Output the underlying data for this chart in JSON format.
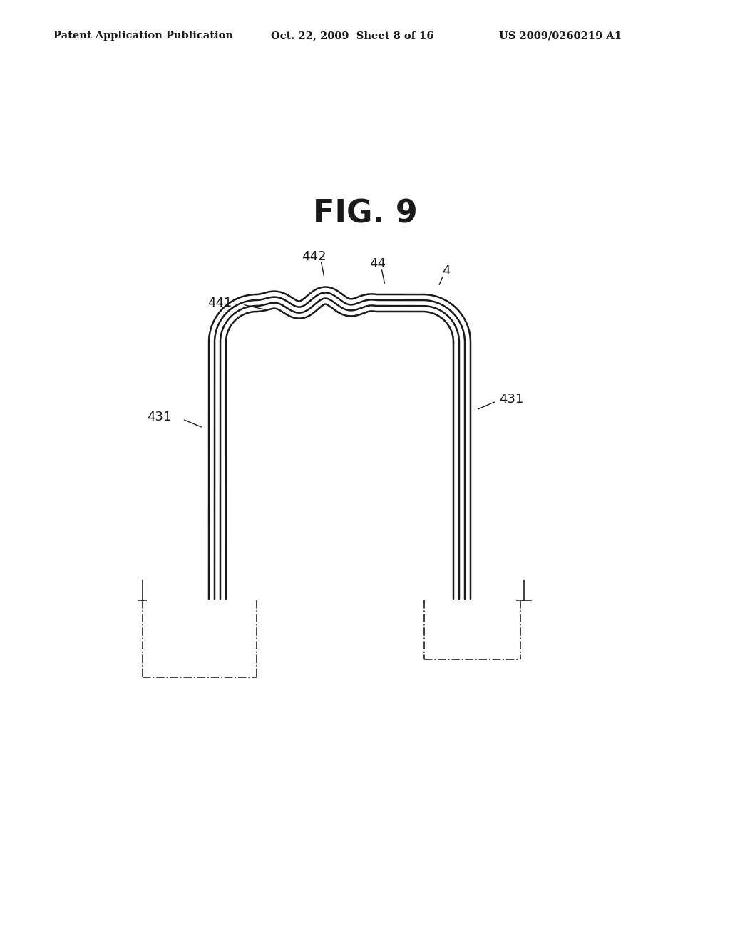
{
  "title": "FIG. 9",
  "header_left": "Patent Application Publication",
  "header_center": "Oct. 22, 2009  Sheet 8 of 16",
  "header_right": "US 2009/0260219 A1",
  "background_color": "#ffffff",
  "line_color": "#1a1a1a",
  "fig_title_fontsize": 32,
  "header_fontsize": 10.5,
  "label_fontsize": 13
}
